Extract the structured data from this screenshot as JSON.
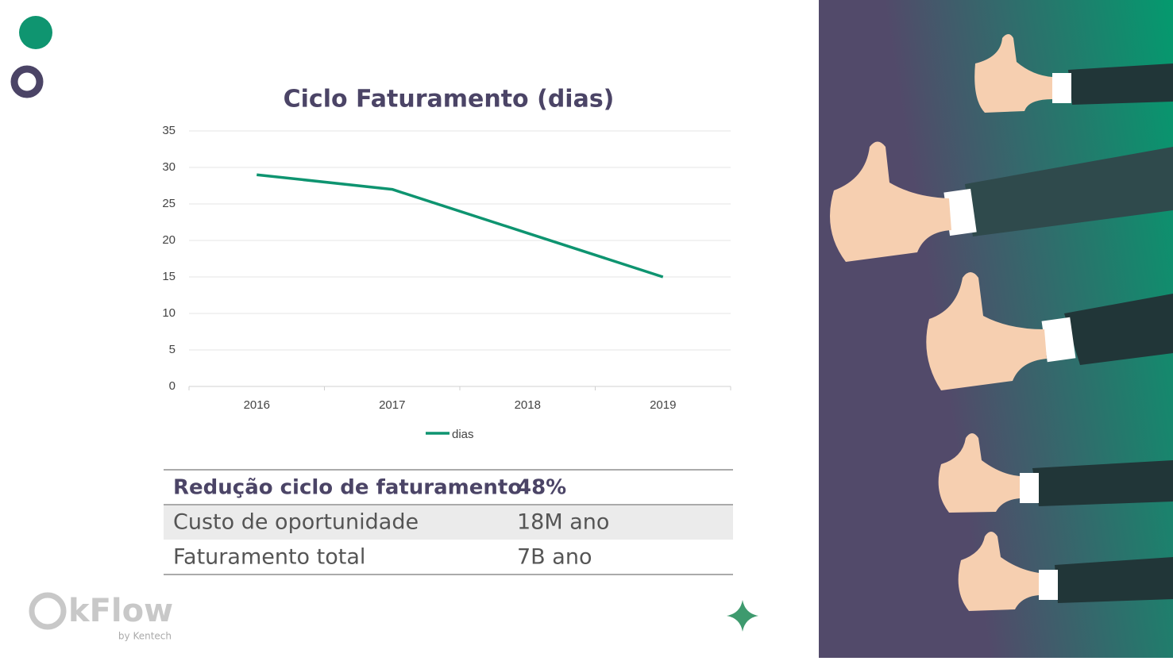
{
  "chart_data": {
    "type": "line",
    "title": "Ciclo Faturamento (dias)",
    "categories": [
      "2016",
      "2017",
      "2018",
      "2019"
    ],
    "series": [
      {
        "name": "dias",
        "color": "#0e9470",
        "values": [
          29,
          27,
          21,
          15
        ]
      }
    ],
    "ylim": [
      0,
      35
    ],
    "yticks": [
      0,
      5,
      10,
      15,
      20,
      25,
      30,
      35
    ],
    "grid": true,
    "legend": "bottom"
  },
  "table": {
    "rows": [
      [
        "Redução ciclo de faturamento",
        "48%"
      ],
      [
        "Custo de oportunidade",
        "18M ano"
      ],
      [
        "Faturamento total",
        "7B ano"
      ]
    ]
  },
  "logo": {
    "name": "kFlow",
    "tagline": "by Kentech"
  }
}
